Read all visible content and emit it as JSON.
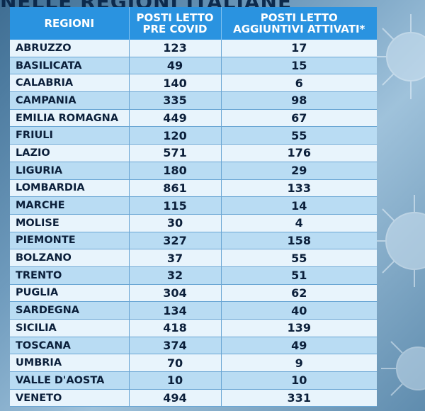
{
  "title": "NELLE REGIONI ITALIANE",
  "table": {
    "headers": {
      "region": "REGIONI",
      "pre_covid": [
        "POSTI LETTO",
        "PRE COVID"
      ],
      "added": [
        "POSTI LETTO",
        "AGGIUNTIVI ATTIVATI*"
      ]
    },
    "rows": [
      {
        "region": "ABRUZZO",
        "pre_covid": "123",
        "added": "17"
      },
      {
        "region": "BASILICATA",
        "pre_covid": "49",
        "added": "15"
      },
      {
        "region": "CALABRIA",
        "pre_covid": "140",
        "added": "6"
      },
      {
        "region": "CAMPANIA",
        "pre_covid": "335",
        "added": "98"
      },
      {
        "region": "EMILIA ROMAGNA",
        "pre_covid": "449",
        "added": "67"
      },
      {
        "region": "FRIULI",
        "pre_covid": "120",
        "added": "55"
      },
      {
        "region": "LAZIO",
        "pre_covid": "571",
        "added": "176"
      },
      {
        "region": "LIGURIA",
        "pre_covid": "180",
        "added": "29"
      },
      {
        "region": "LOMBARDIA",
        "pre_covid": "861",
        "added": "133"
      },
      {
        "region": "MARCHE",
        "pre_covid": "115",
        "added": "14"
      },
      {
        "region": "MOLISE",
        "pre_covid": "30",
        "added": "4"
      },
      {
        "region": "PIEMONTE",
        "pre_covid": "327",
        "added": "158"
      },
      {
        "region": "BOLZANO",
        "pre_covid": "37",
        "added": "55"
      },
      {
        "region": "TRENTO",
        "pre_covid": "32",
        "added": "51"
      },
      {
        "region": "PUGLIA",
        "pre_covid": "304",
        "added": "62"
      },
      {
        "region": "SARDEGNA",
        "pre_covid": "134",
        "added": "40"
      },
      {
        "region": "SICILIA",
        "pre_covid": "418",
        "added": "139"
      },
      {
        "region": "TOSCANA",
        "pre_covid": "374",
        "added": "49"
      },
      {
        "region": "UMBRIA",
        "pre_covid": "70",
        "added": "9"
      },
      {
        "region": "VALLE D'AOSTA",
        "pre_covid": "10",
        "added": "10"
      },
      {
        "region": "VENETO",
        "pre_covid": "494",
        "added": "331"
      }
    ]
  },
  "colors": {
    "header_bg": "#2a93e0",
    "row_light": "#e8f4fc",
    "row_dark": "#b9dcf3"
  },
  "decor": {
    "icon": "virus-icon"
  }
}
